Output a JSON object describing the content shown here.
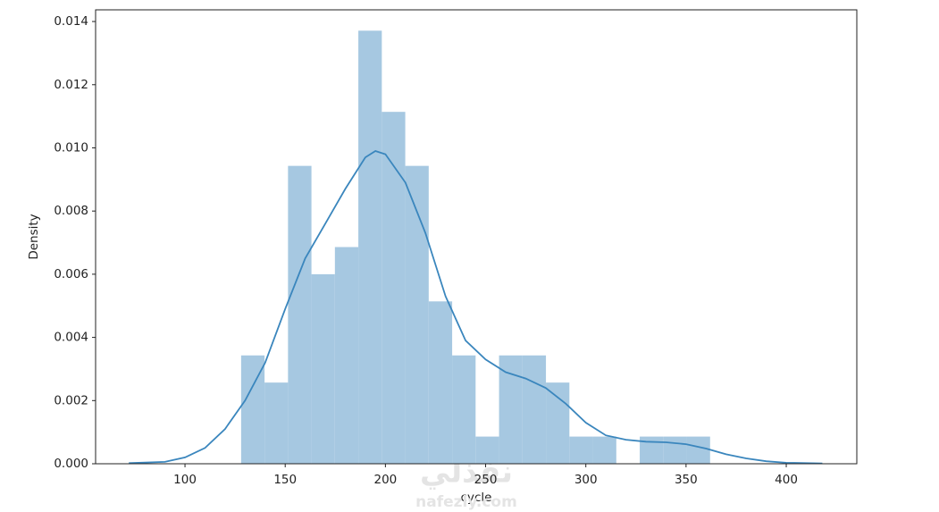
{
  "chart_data": {
    "type": "histogram",
    "xlabel": "cycle",
    "ylabel": "Density",
    "bins": [
      128,
      139.7,
      151.4,
      163.1,
      174.8,
      186.5,
      198.2,
      209.9,
      221.6,
      233.3,
      245,
      256.7,
      268.4,
      280.1,
      291.8,
      303.5,
      315.2,
      326.9,
      338.6,
      350.3,
      362
    ],
    "values": [
      0.00343,
      0.00257,
      0.00943,
      0.006,
      0.00686,
      0.01371,
      0.01114,
      0.00943,
      0.00514,
      0.00343,
      0.00086,
      0.00343,
      0.00343,
      0.00257,
      0.00086,
      0.00086,
      0,
      0.00086,
      0.00086,
      0.00086
    ],
    "color": "#a6c8e1",
    "line": {
      "color": "#3a86bd",
      "x": [
        72,
        90,
        100,
        110,
        120,
        130,
        140,
        150,
        160,
        170,
        180,
        190,
        195,
        200,
        210,
        220,
        230,
        240,
        250,
        260,
        270,
        280,
        290,
        300,
        310,
        320,
        330,
        340,
        350,
        360,
        370,
        380,
        390,
        400,
        418
      ],
      "values": [
        2e-05,
        6e-05,
        0.0002,
        0.0005,
        0.0011,
        0.002,
        0.0032,
        0.0049,
        0.0065,
        0.0076,
        0.0087,
        0.0097,
        0.0099,
        0.0098,
        0.0089,
        0.0073,
        0.0053,
        0.0039,
        0.0033,
        0.0029,
        0.0027,
        0.0024,
        0.0019,
        0.0013,
        0.0009,
        0.00076,
        0.0007,
        0.00068,
        0.00062,
        0.00048,
        0.0003,
        0.00017,
        8e-05,
        3e-05,
        1e-05
      ]
    },
    "xlim": [
      55.4,
      435.2
    ],
    "ylim": [
      0,
      0.01437
    ],
    "xticks": [
      100,
      150,
      200,
      250,
      300,
      350,
      400
    ],
    "yticks": [
      {
        "value": 0,
        "label": "0.000"
      },
      {
        "value": 0.002,
        "label": "0.002"
      },
      {
        "value": 0.004,
        "label": "0.004"
      },
      {
        "value": 0.006,
        "label": "0.006"
      },
      {
        "value": 0.008,
        "label": "0.008"
      },
      {
        "value": 0.01,
        "label": "0.010"
      },
      {
        "value": 0.012,
        "label": "0.012"
      },
      {
        "value": 0.014,
        "label": "0.014"
      }
    ],
    "watermark": [
      "نفذلي",
      "nafezly.com"
    ]
  }
}
